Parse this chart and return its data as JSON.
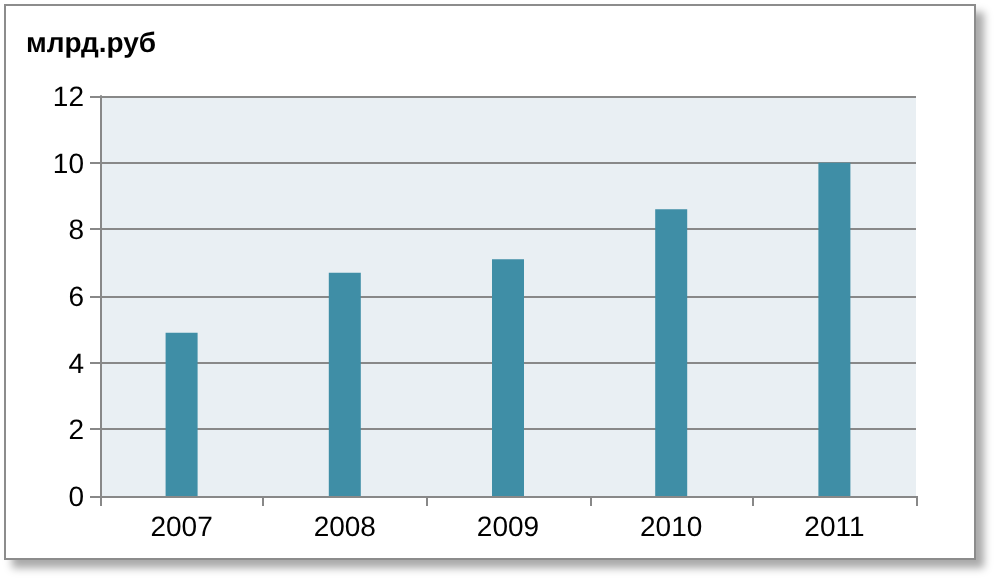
{
  "chart_data": {
    "type": "bar",
    "ylabel": "млрд.руб",
    "categories": [
      "2007",
      "2008",
      "2009",
      "2010",
      "2011"
    ],
    "values": [
      4.9,
      6.7,
      7.1,
      8.6,
      10.0
    ],
    "color": "#3f8ea6",
    "ylim": [
      0,
      12
    ],
    "yticks": [
      0,
      2,
      4,
      6,
      8,
      10,
      12
    ],
    "grid": "y"
  }
}
